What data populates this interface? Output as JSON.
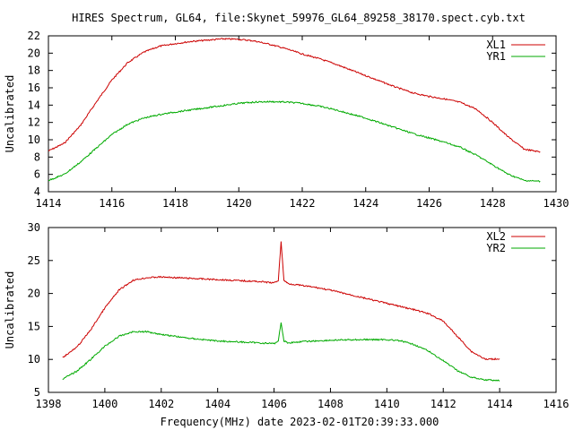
{
  "title": "HIRES Spectrum, GL64, file:Skynet_59976_GL64_89258_38170.spect.cyb.txt",
  "xlabel_bottom": "Frequency(MHz) date 2023-02-01T20:39:33.000",
  "colors": {
    "series1": "#cc0000",
    "series2": "#00aa00"
  },
  "chart_data": [
    {
      "type": "line",
      "ylabel": "Uncalibrated",
      "xlim": [
        1414,
        1430
      ],
      "ylim": [
        4,
        22
      ],
      "xticks": [
        1414,
        1416,
        1418,
        1420,
        1422,
        1424,
        1426,
        1428,
        1430
      ],
      "yticks": [
        4,
        6,
        8,
        10,
        12,
        14,
        16,
        18,
        20,
        22
      ],
      "legend_position": "top-right",
      "series": [
        {
          "name": "XL1",
          "color": "#cc0000",
          "x": [
            1414,
            1414.5,
            1415,
            1415.5,
            1416,
            1416.5,
            1417,
            1417.5,
            1418,
            1418.5,
            1419,
            1419.5,
            1420,
            1420.5,
            1421,
            1421.5,
            1422,
            1422.5,
            1423,
            1423.5,
            1424,
            1424.5,
            1425,
            1425.5,
            1426,
            1426.5,
            1427,
            1427.5,
            1428,
            1428.5,
            1429,
            1429.5
          ],
          "y": [
            8.7,
            9.6,
            11.6,
            14.3,
            16.9,
            18.9,
            20.1,
            20.8,
            21.1,
            21.35,
            21.5,
            21.65,
            21.6,
            21.4,
            21.0,
            20.5,
            19.9,
            19.4,
            18.8,
            18.1,
            17.4,
            16.7,
            16.0,
            15.4,
            15.0,
            14.7,
            14.3,
            13.5,
            12.0,
            10.3,
            8.9,
            8.6
          ]
        },
        {
          "name": "YR1",
          "color": "#00aa00",
          "x": [
            1414,
            1414.5,
            1415,
            1415.5,
            1416,
            1416.5,
            1417,
            1417.5,
            1418,
            1418.5,
            1419,
            1419.5,
            1420,
            1420.5,
            1421,
            1421.5,
            1422,
            1422.5,
            1423,
            1423.5,
            1424,
            1424.5,
            1425,
            1425.5,
            1426,
            1426.5,
            1427,
            1427.5,
            1428,
            1428.5,
            1429,
            1429.5
          ],
          "y": [
            5.3,
            6.0,
            7.4,
            9.0,
            10.6,
            11.8,
            12.5,
            12.9,
            13.2,
            13.45,
            13.7,
            13.95,
            14.2,
            14.35,
            14.4,
            14.35,
            14.2,
            13.9,
            13.5,
            13.0,
            12.5,
            11.9,
            11.3,
            10.7,
            10.2,
            9.7,
            9.1,
            8.2,
            7.1,
            6.0,
            5.3,
            5.2
          ]
        }
      ]
    },
    {
      "type": "line",
      "ylabel": "Uncalibrated",
      "xlabel": "Frequency(MHz) date 2023-02-01T20:39:33.000",
      "xlim": [
        1398,
        1416
      ],
      "ylim": [
        5,
        30
      ],
      "xticks": [
        1398,
        1400,
        1402,
        1404,
        1406,
        1408,
        1410,
        1412,
        1414,
        1416
      ],
      "yticks": [
        5,
        10,
        15,
        20,
        25,
        30
      ],
      "legend_position": "top-right",
      "series": [
        {
          "name": "XL2",
          "color": "#cc0000",
          "x": [
            1398.5,
            1399,
            1399.5,
            1400,
            1400.5,
            1401,
            1401.5,
            1402,
            1402.5,
            1403,
            1403.5,
            1404,
            1404.5,
            1405,
            1405.5,
            1406,
            1406.15,
            1406.25,
            1406.35,
            1406.5,
            1407,
            1407.5,
            1408,
            1408.5,
            1409,
            1409.5,
            1410,
            1410.5,
            1411,
            1411.5,
            1412,
            1412.5,
            1413,
            1413.5,
            1414
          ],
          "y": [
            10.3,
            11.8,
            14.5,
            17.8,
            20.5,
            22.0,
            22.4,
            22.5,
            22.4,
            22.3,
            22.2,
            22.1,
            22.0,
            21.9,
            21.8,
            21.6,
            22.0,
            27.8,
            22.0,
            21.5,
            21.2,
            20.9,
            20.5,
            20.0,
            19.5,
            19.0,
            18.5,
            18.0,
            17.5,
            16.9,
            15.8,
            13.5,
            11.2,
            10.0,
            10.1
          ]
        },
        {
          "name": "YR2",
          "color": "#00aa00",
          "x": [
            1398.5,
            1399,
            1399.5,
            1400,
            1400.5,
            1401,
            1401.5,
            1402,
            1402.5,
            1403,
            1403.5,
            1404,
            1404.5,
            1405,
            1405.5,
            1406,
            1406.15,
            1406.25,
            1406.35,
            1406.5,
            1407,
            1407.5,
            1408,
            1408.5,
            1409,
            1409.5,
            1410,
            1410.5,
            1411,
            1411.5,
            1412,
            1412.5,
            1413,
            1413.5,
            1414
          ],
          "y": [
            7.0,
            8.2,
            10.0,
            12.0,
            13.5,
            14.2,
            14.2,
            13.8,
            13.5,
            13.2,
            13.0,
            12.8,
            12.7,
            12.6,
            12.5,
            12.4,
            12.8,
            15.6,
            12.8,
            12.5,
            12.7,
            12.8,
            12.9,
            12.95,
            13.0,
            13.0,
            13.0,
            12.8,
            12.2,
            11.2,
            9.8,
            8.3,
            7.3,
            6.9,
            6.8
          ]
        }
      ]
    }
  ]
}
